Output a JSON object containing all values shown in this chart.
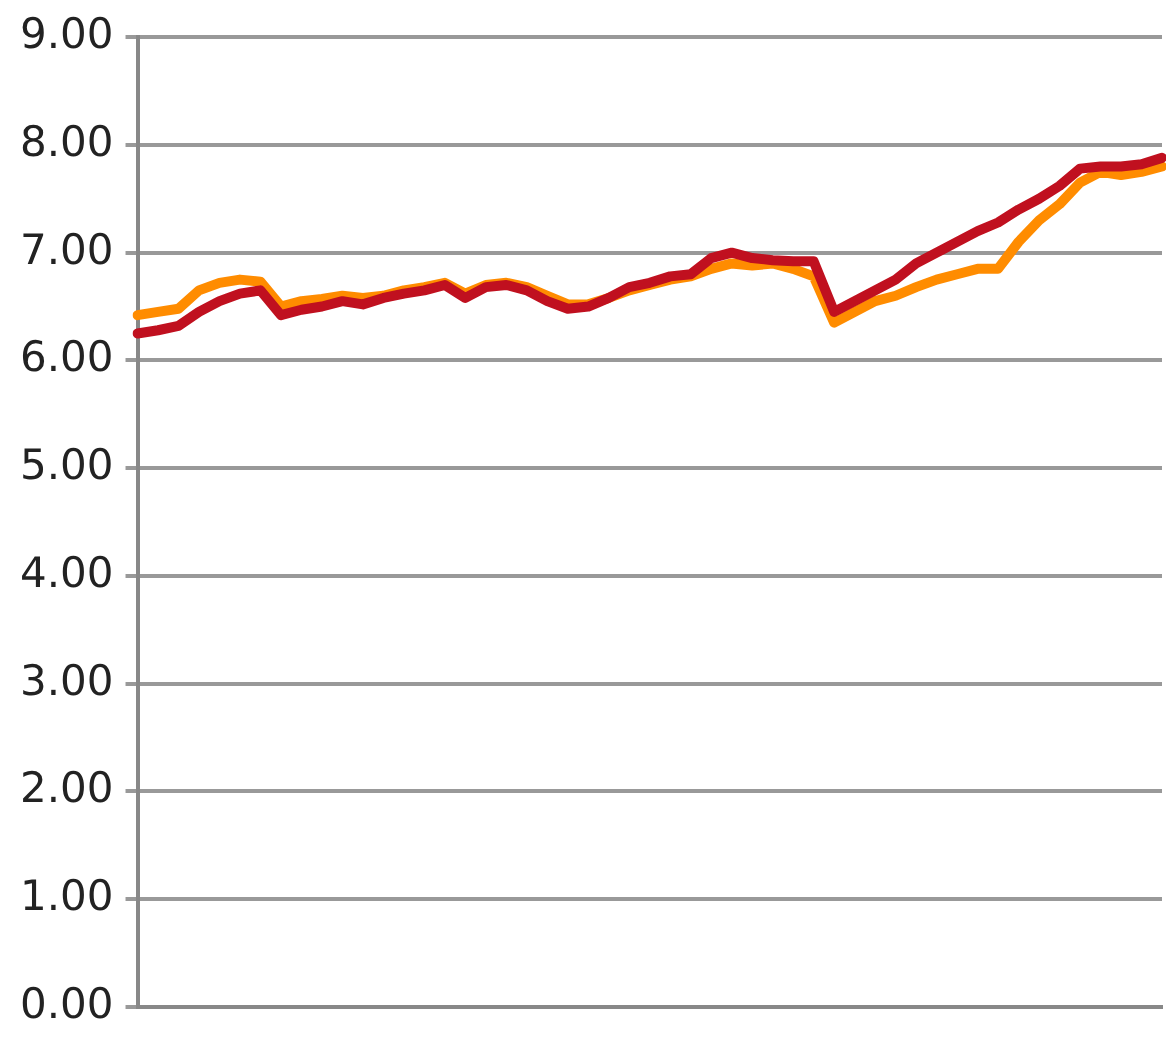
{
  "chart_data": {
    "type": "line",
    "categories": [
      null,
      null,
      null,
      null,
      null,
      null,
      null,
      null,
      null,
      null,
      null,
      null,
      null,
      null,
      null,
      null,
      null,
      null,
      null,
      null,
      null,
      null,
      null,
      null,
      null,
      null,
      null,
      null,
      null,
      null,
      null,
      null,
      null,
      null,
      null,
      null,
      null,
      null,
      null,
      null,
      null,
      null,
      null,
      null,
      null,
      null,
      null,
      null,
      null,
      null,
      null
    ],
    "series": [
      {
        "color": "#c0101f",
        "values": [
          6.25,
          6.28,
          6.32,
          6.45,
          6.55,
          6.62,
          6.65,
          6.42,
          6.47,
          6.5,
          6.55,
          6.52,
          6.58,
          6.62,
          6.65,
          6.7,
          6.58,
          6.68,
          6.7,
          6.65,
          6.55,
          6.48,
          6.5,
          6.58,
          6.68,
          6.72,
          6.78,
          6.8,
          6.95,
          7.0,
          6.95,
          6.93,
          6.92,
          6.92,
          6.45,
          6.55,
          6.65,
          6.75,
          6.9,
          7.0,
          7.1,
          7.2,
          7.28,
          7.4,
          7.5,
          7.62,
          7.78,
          7.8,
          7.8,
          7.82,
          7.88
        ]
      },
      {
        "color": "#ff8c00",
        "values": [
          6.42,
          6.45,
          6.48,
          6.65,
          6.72,
          6.75,
          6.73,
          6.5,
          6.55,
          6.57,
          6.6,
          6.58,
          6.6,
          6.65,
          6.68,
          6.72,
          6.62,
          6.7,
          6.72,
          6.68,
          6.6,
          6.52,
          6.52,
          6.58,
          6.65,
          6.7,
          6.75,
          6.78,
          6.85,
          6.9,
          6.88,
          6.9,
          6.85,
          6.78,
          6.35,
          6.45,
          6.55,
          6.6,
          6.68,
          6.75,
          6.8,
          6.85,
          6.85,
          7.1,
          7.3,
          7.45,
          7.65,
          7.75,
          7.72,
          7.75,
          7.8
        ]
      }
    ],
    "ylim": [
      0,
      9
    ],
    "yticks": [
      {
        "value": 0,
        "label": "0.00"
      },
      {
        "value": 1,
        "label": "1.00"
      },
      {
        "value": 2,
        "label": "2.00"
      },
      {
        "value": 3,
        "label": "3.00"
      },
      {
        "value": 4,
        "label": "4.00"
      },
      {
        "value": 5,
        "label": "5.00"
      },
      {
        "value": 6,
        "label": "6.00"
      },
      {
        "value": 7,
        "label": "7.00"
      },
      {
        "value": 8,
        "label": "8.00"
      },
      {
        "value": 9,
        "label": "9.00"
      }
    ],
    "grid": "y",
    "legend": false,
    "marker": "none",
    "line_style": "solid",
    "tick_labels": "y"
  }
}
